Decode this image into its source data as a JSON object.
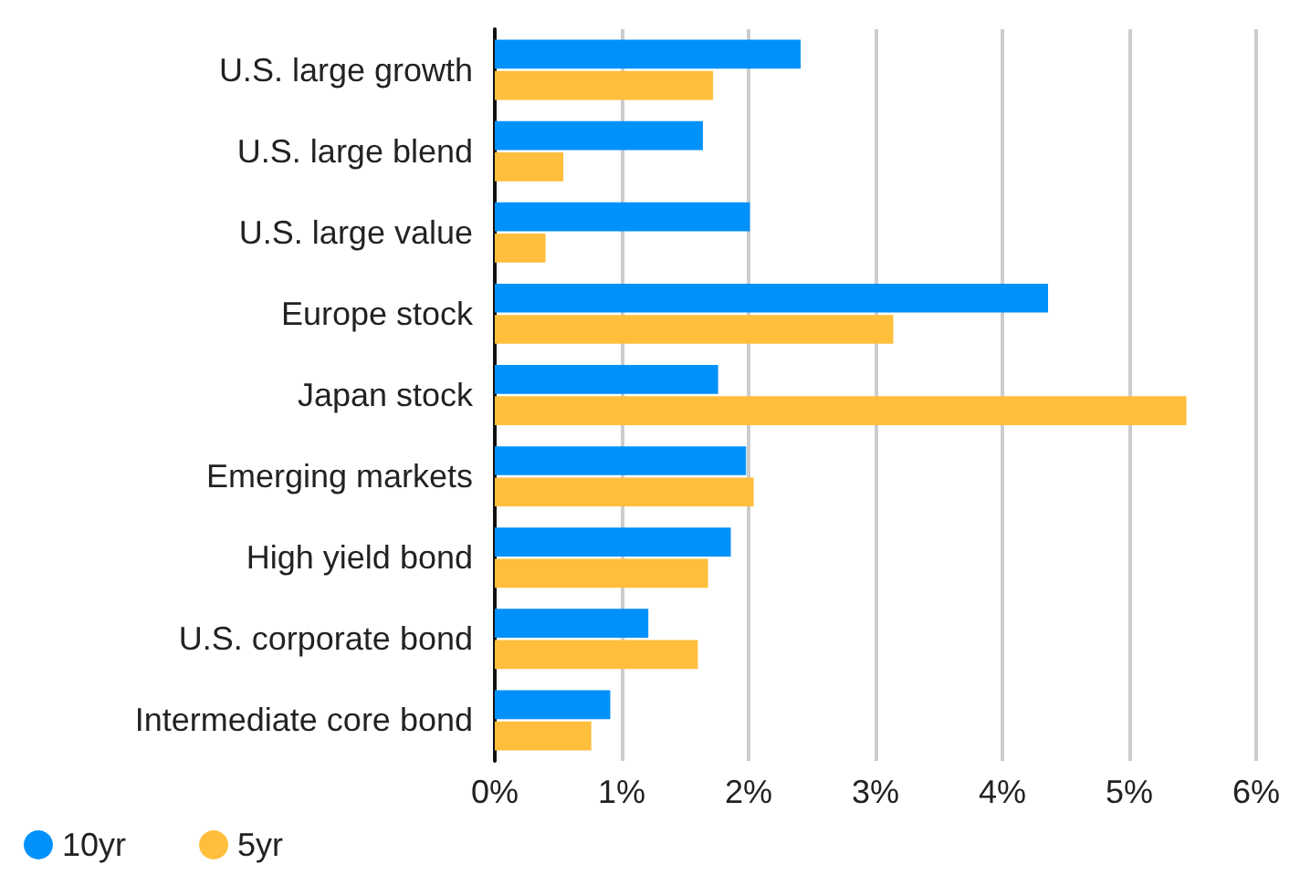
{
  "chart_data": {
    "type": "bar",
    "orientation": "horizontal",
    "categories": [
      "U.S. large growth",
      "U.S. large blend",
      "U.S. large value",
      "Europe stock",
      "Japan stock",
      "Emerging markets",
      "High yield bond",
      "U.S. corporate bond",
      "Intermediate core bond"
    ],
    "series": [
      {
        "name": "10yr",
        "color": "#0091fa",
        "values": [
          2.41,
          1.64,
          2.01,
          4.36,
          1.76,
          1.98,
          1.86,
          1.21,
          0.91
        ]
      },
      {
        "name": "5yr",
        "color": "#ffbe3c",
        "values": [
          1.72,
          0.54,
          0.4,
          3.14,
          5.45,
          2.04,
          1.68,
          1.6,
          0.76
        ]
      }
    ],
    "xlim": [
      0,
      6
    ],
    "xticks": [
      {
        "value": 0,
        "label": "0%"
      },
      {
        "value": 1,
        "label": "1%"
      },
      {
        "value": 2,
        "label": "2%"
      },
      {
        "value": 3,
        "label": "3%"
      },
      {
        "value": 4,
        "label": "4%"
      },
      {
        "value": 5,
        "label": "5%"
      },
      {
        "value": 6,
        "label": "6%"
      }
    ],
    "grid": "x",
    "legend": "bottom left"
  }
}
